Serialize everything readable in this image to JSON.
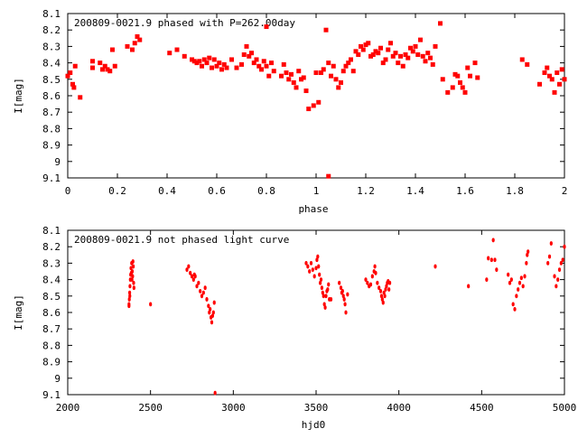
{
  "chart_data": [
    {
      "type": "scatter",
      "title": "200809-0021.9 phased with P=262.00day",
      "xlabel": "phase",
      "ylabel": "I[mag]",
      "xlim": [
        0,
        2
      ],
      "ylim": [
        9.1,
        8.1
      ],
      "y_inverted": true,
      "x_ticks": [
        0,
        0.2,
        0.4,
        0.6,
        0.8,
        1,
        1.2,
        1.4,
        1.6,
        1.8,
        2
      ],
      "x_tick_labels": [
        "0",
        "0.2",
        "0.4",
        "0.6",
        "0.8",
        "1",
        "1.2",
        "1.4",
        "1.6",
        "1.8",
        "2"
      ],
      "y_ticks": [
        8.1,
        8.2,
        8.3,
        8.4,
        8.5,
        8.6,
        8.7,
        8.8,
        8.9,
        9.0,
        9.1
      ],
      "y_tick_labels": [
        "8.1",
        "8.2",
        "8.3",
        "8.4",
        "8.5",
        "8.6",
        "8.7",
        "8.8",
        "8.9",
        "9",
        "9.1"
      ],
      "grid": false,
      "marker_color": "#ff0000",
      "points": [
        [
          0.0,
          8.48
        ],
        [
          0.01,
          8.46
        ],
        [
          0.02,
          8.53
        ],
        [
          0.025,
          8.55
        ],
        [
          0.03,
          8.42
        ],
        [
          0.05,
          8.61
        ],
        [
          0.1,
          8.39
        ],
        [
          0.1,
          8.43
        ],
        [
          0.13,
          8.4
        ],
        [
          0.14,
          8.44
        ],
        [
          0.15,
          8.42
        ],
        [
          0.16,
          8.44
        ],
        [
          0.17,
          8.45
        ],
        [
          0.18,
          8.32
        ],
        [
          0.19,
          8.42
        ],
        [
          0.24,
          8.3
        ],
        [
          0.26,
          8.32
        ],
        [
          0.27,
          8.28
        ],
        [
          0.28,
          8.24
        ],
        [
          0.29,
          8.26
        ],
        [
          0.41,
          8.34
        ],
        [
          0.44,
          8.32
        ],
        [
          0.47,
          8.36
        ],
        [
          0.5,
          8.38
        ],
        [
          0.51,
          8.39
        ],
        [
          0.52,
          8.4
        ],
        [
          0.53,
          8.39
        ],
        [
          0.54,
          8.42
        ],
        [
          0.55,
          8.38
        ],
        [
          0.56,
          8.4
        ],
        [
          0.57,
          8.37
        ],
        [
          0.58,
          8.43
        ],
        [
          0.59,
          8.38
        ],
        [
          0.6,
          8.42
        ],
        [
          0.61,
          8.4
        ],
        [
          0.62,
          8.44
        ],
        [
          0.63,
          8.41
        ],
        [
          0.64,
          8.43
        ],
        [
          0.66,
          8.38
        ],
        [
          0.68,
          8.43
        ],
        [
          0.7,
          8.41
        ],
        [
          0.71,
          8.35
        ],
        [
          0.72,
          8.3
        ],
        [
          0.73,
          8.36
        ],
        [
          0.74,
          8.34
        ],
        [
          0.75,
          8.4
        ],
        [
          0.76,
          8.38
        ],
        [
          0.77,
          8.42
        ],
        [
          0.78,
          8.44
        ],
        [
          0.79,
          8.39
        ],
        [
          0.8,
          8.42
        ],
        [
          0.81,
          8.48
        ],
        [
          0.82,
          8.4
        ],
        [
          0.8,
          8.18
        ],
        [
          0.83,
          8.45
        ],
        [
          0.86,
          8.48
        ],
        [
          0.87,
          8.41
        ],
        [
          0.88,
          8.46
        ],
        [
          0.89,
          8.5
        ],
        [
          0.9,
          8.47
        ],
        [
          0.91,
          8.52
        ],
        [
          0.92,
          8.55
        ],
        [
          0.93,
          8.45
        ],
        [
          0.94,
          8.5
        ],
        [
          0.95,
          8.49
        ],
        [
          0.96,
          8.57
        ],
        [
          0.97,
          8.68
        ],
        [
          0.99,
          8.66
        ],
        [
          1.01,
          8.64
        ],
        [
          1.0,
          8.46
        ],
        [
          1.02,
          8.46
        ],
        [
          1.03,
          8.44
        ],
        [
          1.04,
          8.2
        ],
        [
          1.05,
          8.4
        ],
        [
          1.06,
          8.48
        ],
        [
          1.07,
          8.42
        ],
        [
          1.08,
          8.5
        ],
        [
          1.09,
          8.55
        ],
        [
          1.1,
          8.52
        ],
        [
          1.11,
          8.45
        ],
        [
          1.12,
          8.42
        ],
        [
          1.13,
          8.4
        ],
        [
          1.14,
          8.38
        ],
        [
          1.15,
          8.45
        ],
        [
          1.16,
          8.33
        ],
        [
          1.17,
          8.35
        ],
        [
          1.18,
          8.3
        ],
        [
          1.19,
          8.32
        ],
        [
          1.2,
          8.29
        ],
        [
          1.21,
          8.28
        ],
        [
          1.22,
          8.36
        ],
        [
          1.23,
          8.35
        ],
        [
          1.24,
          8.33
        ],
        [
          1.25,
          8.34
        ],
        [
          1.26,
          8.31
        ],
        [
          1.27,
          8.4
        ],
        [
          1.28,
          8.38
        ],
        [
          1.29,
          8.32
        ],
        [
          1.3,
          8.28
        ],
        [
          1.31,
          8.36
        ],
        [
          1.32,
          8.34
        ],
        [
          1.33,
          8.4
        ],
        [
          1.34,
          8.36
        ],
        [
          1.35,
          8.42
        ],
        [
          1.36,
          8.35
        ],
        [
          1.37,
          8.37
        ],
        [
          1.38,
          8.31
        ],
        [
          1.39,
          8.33
        ],
        [
          1.4,
          8.3
        ],
        [
          1.41,
          8.35
        ],
        [
          1.42,
          8.26
        ],
        [
          1.43,
          8.36
        ],
        [
          1.44,
          8.39
        ],
        [
          1.45,
          8.34
        ],
        [
          1.46,
          8.37
        ],
        [
          1.47,
          8.41
        ],
        [
          1.48,
          8.3
        ],
        [
          1.5,
          8.16
        ],
        [
          1.51,
          8.5
        ],
        [
          1.53,
          8.58
        ],
        [
          1.55,
          8.55
        ],
        [
          1.56,
          8.47
        ],
        [
          1.57,
          8.48
        ],
        [
          1.58,
          8.52
        ],
        [
          1.59,
          8.55
        ],
        [
          1.6,
          8.58
        ],
        [
          1.61,
          8.43
        ],
        [
          1.62,
          8.48
        ],
        [
          1.64,
          8.4
        ],
        [
          1.65,
          8.49
        ],
        [
          1.83,
          8.38
        ],
        [
          1.85,
          8.41
        ],
        [
          1.9,
          8.53
        ],
        [
          1.92,
          8.46
        ],
        [
          1.93,
          8.43
        ],
        [
          1.94,
          8.48
        ],
        [
          1.95,
          8.5
        ],
        [
          1.96,
          8.58
        ],
        [
          1.97,
          8.46
        ],
        [
          1.98,
          8.53
        ],
        [
          1.99,
          8.44
        ],
        [
          2.0,
          8.5
        ],
        [
          1.05,
          9.09
        ]
      ]
    },
    {
      "type": "scatter",
      "title": "200809-0021.9 not phased light curve",
      "xlabel": "hjd0",
      "ylabel": "I[mag]",
      "xlim": [
        2000,
        5000
      ],
      "ylim": [
        9.1,
        8.1
      ],
      "y_inverted": true,
      "x_ticks": [
        2000,
        2500,
        3000,
        3500,
        4000,
        4500,
        5000
      ],
      "x_tick_labels": [
        "2000",
        "2500",
        "3000",
        "3500",
        "4000",
        "4500",
        "5000"
      ],
      "y_ticks": [
        8.1,
        8.2,
        8.3,
        8.4,
        8.5,
        8.6,
        8.7,
        8.8,
        8.9,
        9.0,
        9.1
      ],
      "y_tick_labels": [
        "8.1",
        "8.2",
        "8.3",
        "8.4",
        "8.5",
        "8.6",
        "8.7",
        "8.8",
        "8.9",
        "9",
        "9.1"
      ],
      "grid": false,
      "marker_color": "#ff0000",
      "points": [
        [
          2370,
          8.55
        ],
        [
          2372,
          8.52
        ],
        [
          2374,
          8.48
        ],
        [
          2376,
          8.44
        ],
        [
          2378,
          8.4
        ],
        [
          2380,
          8.37
        ],
        [
          2382,
          8.33
        ],
        [
          2384,
          8.36
        ],
        [
          2386,
          8.3
        ],
        [
          2388,
          8.4
        ],
        [
          2390,
          8.35
        ],
        [
          2392,
          8.38
        ],
        [
          2394,
          8.29
        ],
        [
          2396,
          8.32
        ],
        [
          2398,
          8.42
        ],
        [
          2400,
          8.45
        ],
        [
          2370,
          8.56
        ],
        [
          2375,
          8.5
        ],
        [
          2500,
          8.55
        ],
        [
          2720,
          8.34
        ],
        [
          2730,
          8.32
        ],
        [
          2740,
          8.36
        ],
        [
          2750,
          8.38
        ],
        [
          2760,
          8.4
        ],
        [
          2765,
          8.37
        ],
        [
          2770,
          8.38
        ],
        [
          2780,
          8.44
        ],
        [
          2790,
          8.42
        ],
        [
          2800,
          8.47
        ],
        [
          2810,
          8.5
        ],
        [
          2820,
          8.48
        ],
        [
          2830,
          8.45
        ],
        [
          2840,
          8.52
        ],
        [
          2850,
          8.56
        ],
        [
          2855,
          8.6
        ],
        [
          2860,
          8.58
        ],
        [
          2865,
          8.63
        ],
        [
          2870,
          8.66
        ],
        [
          2875,
          8.62
        ],
        [
          2880,
          8.6
        ],
        [
          2885,
          8.54
        ],
        [
          2890,
          9.09
        ],
        [
          3440,
          8.3
        ],
        [
          3450,
          8.32
        ],
        [
          3460,
          8.35
        ],
        [
          3470,
          8.3
        ],
        [
          3480,
          8.34
        ],
        [
          3490,
          8.38
        ],
        [
          3500,
          8.33
        ],
        [
          3505,
          8.28
        ],
        [
          3510,
          8.26
        ],
        [
          3515,
          8.32
        ],
        [
          3520,
          8.37
        ],
        [
          3525,
          8.42
        ],
        [
          3530,
          8.4
        ],
        [
          3535,
          8.45
        ],
        [
          3540,
          8.48
        ],
        [
          3545,
          8.5
        ],
        [
          3550,
          8.55
        ],
        [
          3555,
          8.57
        ],
        [
          3560,
          8.5
        ],
        [
          3565,
          8.47
        ],
        [
          3570,
          8.46
        ],
        [
          3575,
          8.43
        ],
        [
          3580,
          8.52
        ],
        [
          3590,
          8.52
        ],
        [
          3640,
          8.42
        ],
        [
          3650,
          8.45
        ],
        [
          3655,
          8.48
        ],
        [
          3660,
          8.47
        ],
        [
          3665,
          8.5
        ],
        [
          3670,
          8.52
        ],
        [
          3675,
          8.55
        ],
        [
          3680,
          8.6
        ],
        [
          3690,
          8.49
        ],
        [
          3800,
          8.4
        ],
        [
          3810,
          8.42
        ],
        [
          3820,
          8.44
        ],
        [
          3830,
          8.43
        ],
        [
          3840,
          8.38
        ],
        [
          3850,
          8.35
        ],
        [
          3855,
          8.32
        ],
        [
          3860,
          8.36
        ],
        [
          3870,
          8.42
        ],
        [
          3880,
          8.45
        ],
        [
          3890,
          8.47
        ],
        [
          3895,
          8.5
        ],
        [
          3900,
          8.52
        ],
        [
          3905,
          8.54
        ],
        [
          3910,
          8.48
        ],
        [
          3915,
          8.5
        ],
        [
          3920,
          8.46
        ],
        [
          3925,
          8.44
        ],
        [
          3930,
          8.42
        ],
        [
          3935,
          8.41
        ],
        [
          3940,
          8.46
        ],
        [
          3945,
          8.42
        ],
        [
          4220,
          8.32
        ],
        [
          4420,
          8.44
        ],
        [
          4530,
          8.4
        ],
        [
          4540,
          8.27
        ],
        [
          4560,
          8.28
        ],
        [
          4570,
          8.16
        ],
        [
          4580,
          8.28
        ],
        [
          4590,
          8.34
        ],
        [
          4660,
          8.37
        ],
        [
          4670,
          8.42
        ],
        [
          4680,
          8.4
        ],
        [
          4690,
          8.55
        ],
        [
          4700,
          8.58
        ],
        [
          4710,
          8.5
        ],
        [
          4720,
          8.46
        ],
        [
          4730,
          8.42
        ],
        [
          4740,
          8.39
        ],
        [
          4750,
          8.44
        ],
        [
          4760,
          8.38
        ],
        [
          4770,
          8.3
        ],
        [
          4775,
          8.25
        ],
        [
          4780,
          8.23
        ],
        [
          4900,
          8.3
        ],
        [
          4910,
          8.26
        ],
        [
          4920,
          8.18
        ],
        [
          4940,
          8.38
        ],
        [
          4950,
          8.44
        ],
        [
          4960,
          8.4
        ],
        [
          4970,
          8.34
        ],
        [
          4980,
          8.3
        ],
        [
          4990,
          8.28
        ],
        [
          5000,
          8.2
        ]
      ]
    }
  ]
}
